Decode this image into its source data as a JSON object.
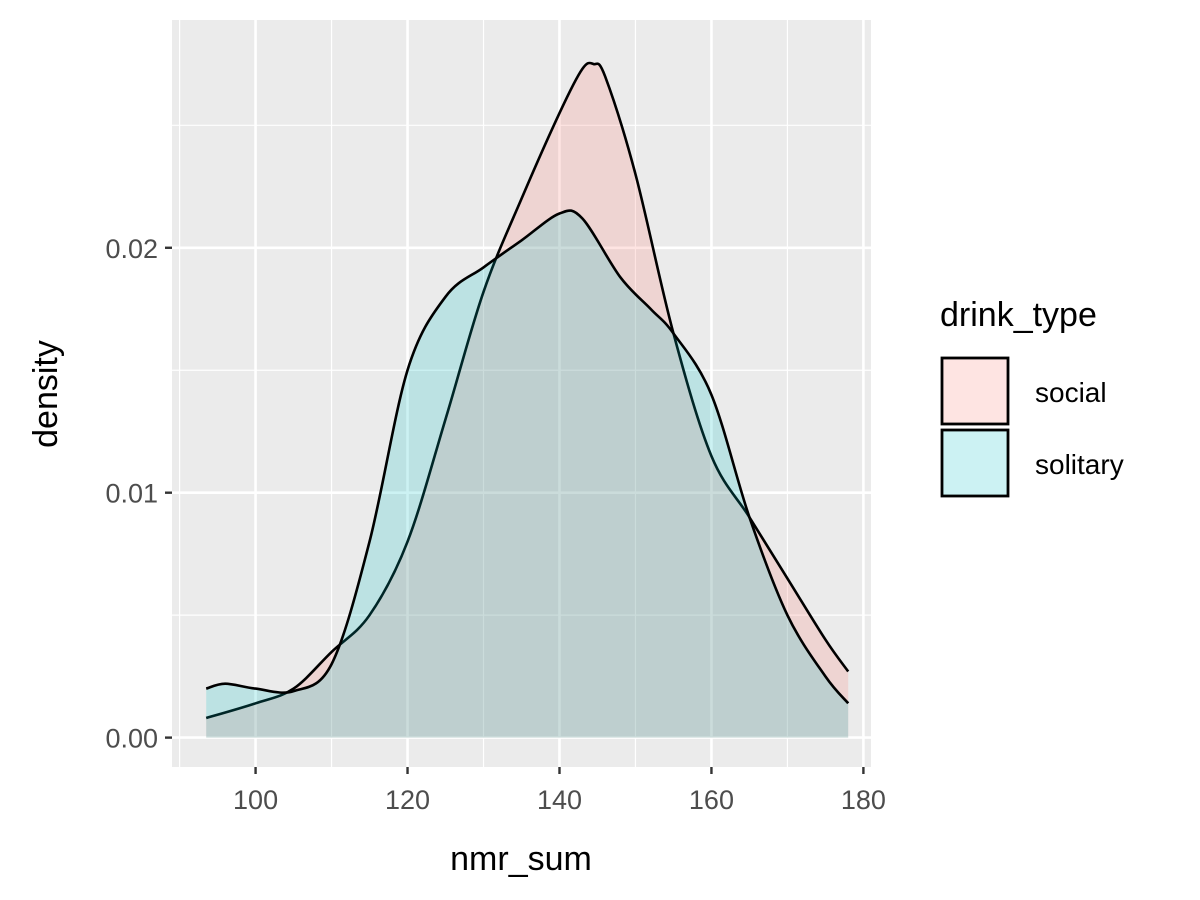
{
  "chart_data": {
    "type": "area",
    "subtype": "density",
    "xlabel": "nmr_sum",
    "ylabel": "density",
    "xlim": [
      89,
      181
    ],
    "ylim": [
      -0.0012,
      0.0293
    ],
    "x_ticks": [
      100,
      120,
      140,
      160,
      180
    ],
    "y_ticks": [
      0.0,
      0.01,
      0.02
    ],
    "x_tick_labels": [
      "100",
      "120",
      "140",
      "160",
      "180"
    ],
    "y_tick_labels": [
      "0.00",
      "0.01",
      "0.02"
    ],
    "grid": true,
    "legend": {
      "title": "drink_type",
      "position": "right"
    },
    "series": [
      {
        "name": "social",
        "fill": "#F8766D",
        "x": [
          93.5,
          100,
          105,
          110,
          115,
          120,
          125,
          130,
          135,
          140,
          143,
          144.5,
          146,
          150,
          155,
          160,
          165,
          170,
          175,
          178
        ],
        "y": [
          0.0008,
          0.0014,
          0.002,
          0.0035,
          0.005,
          0.008,
          0.013,
          0.0182,
          0.022,
          0.0255,
          0.0273,
          0.0275,
          0.027,
          0.023,
          0.0165,
          0.0115,
          0.009,
          0.0065,
          0.004,
          0.0027
        ]
      },
      {
        "name": "solitary",
        "fill": "#00BFC4",
        "x": [
          93.5,
          96,
          100,
          105,
          110,
          115,
          120,
          125,
          130,
          135,
          140,
          143,
          148,
          152,
          155,
          160,
          165,
          170,
          175,
          178
        ],
        "y": [
          0.002,
          0.0022,
          0.002,
          0.0019,
          0.003,
          0.008,
          0.015,
          0.018,
          0.0192,
          0.0203,
          0.0214,
          0.0212,
          0.0188,
          0.0175,
          0.0165,
          0.014,
          0.009,
          0.005,
          0.0025,
          0.0014
        ]
      }
    ]
  }
}
